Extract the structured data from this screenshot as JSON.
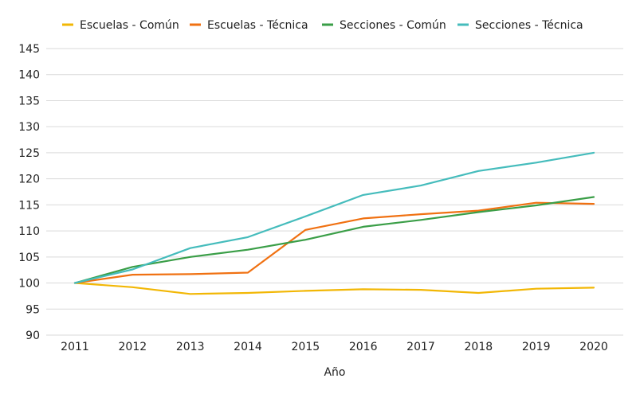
{
  "chart_data": {
    "type": "line",
    "title": "",
    "xlabel": "Año",
    "ylabel": "",
    "categories": [
      "2011",
      "2012",
      "2013",
      "2014",
      "2015",
      "2016",
      "2017",
      "2018",
      "2019",
      "2020"
    ],
    "ylim": [
      90,
      145
    ],
    "yticks": [
      90,
      95,
      100,
      105,
      110,
      115,
      120,
      125,
      130,
      135,
      140,
      145
    ],
    "grid": true,
    "legend_position": "top",
    "series": [
      {
        "name": "Escuelas - Común",
        "color": "#f2b705",
        "values": [
          100,
          99.2,
          97.9,
          98.1,
          98.5,
          98.8,
          98.7,
          98.1,
          98.9,
          99.1
        ]
      },
      {
        "name": "Escuelas - Técnica",
        "color": "#f07112",
        "values": [
          100,
          101.6,
          101.7,
          102.0,
          110.2,
          112.4,
          113.2,
          113.9,
          115.4,
          115.2
        ]
      },
      {
        "name": "Secciones - Común",
        "color": "#3a9e47",
        "values": [
          100,
          103.1,
          105.0,
          106.4,
          108.3,
          110.8,
          112.1,
          113.6,
          114.9,
          116.5
        ]
      },
      {
        "name": "Secciones - Técnica",
        "color": "#45bcbc",
        "values": [
          100,
          102.6,
          106.7,
          108.8,
          112.8,
          116.9,
          118.7,
          121.5,
          123.1,
          125.0
        ]
      }
    ]
  }
}
